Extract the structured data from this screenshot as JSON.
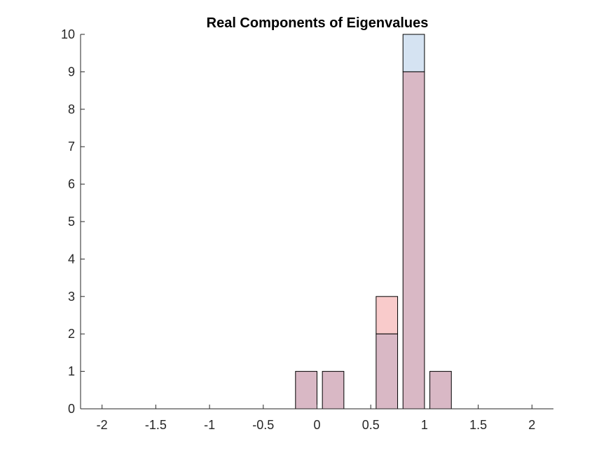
{
  "chart_data": {
    "type": "bar",
    "title": "Real Components of Eigenvalues",
    "xlabel": "",
    "ylabel": "",
    "xlim": [
      -2.2,
      2.2
    ],
    "ylim": [
      0,
      10
    ],
    "xticks": [
      -2,
      -1.5,
      -1,
      -0.5,
      0,
      0.5,
      1,
      1.5,
      2
    ],
    "xtick_labels": [
      "-2",
      "-1.5",
      "-1",
      "-0.5",
      "0",
      "0.5",
      "1",
      "1.5",
      "2"
    ],
    "yticks": [
      0,
      1,
      2,
      3,
      4,
      5,
      6,
      7,
      8,
      9,
      10
    ],
    "ytick_labels": [
      "0",
      "1",
      "2",
      "3",
      "4",
      "5",
      "6",
      "7",
      "8",
      "9",
      "10"
    ],
    "bin_edges": [
      -2.0,
      -1.75,
      -1.5,
      -1.25,
      -1.0,
      -0.75,
      -0.5,
      -0.25,
      0.0,
      0.25,
      0.5,
      0.75,
      1.0,
      1.25,
      1.5,
      1.75,
      2.0
    ],
    "bin_width": 0.2,
    "bin_centers": [
      -1.9,
      -1.65,
      -1.4,
      -1.15,
      -0.9,
      -0.65,
      -0.4,
      -0.1,
      0.15,
      0.4,
      0.65,
      0.9,
      1.15,
      1.4,
      1.65,
      1.9
    ],
    "series": [
      {
        "color": "#f9cbcb",
        "values": [
          0,
          0,
          0,
          0,
          0,
          0,
          0,
          1,
          1,
          0,
          3,
          9,
          1,
          0,
          0,
          0
        ]
      },
      {
        "color": "#d5e3f2",
        "values": [
          0,
          0,
          0,
          0,
          0,
          0,
          0,
          1,
          1,
          0,
          2,
          10,
          1,
          0,
          0,
          0
        ]
      }
    ],
    "overlap_color": "#d9b8c5",
    "grid": false,
    "legend": "none"
  }
}
